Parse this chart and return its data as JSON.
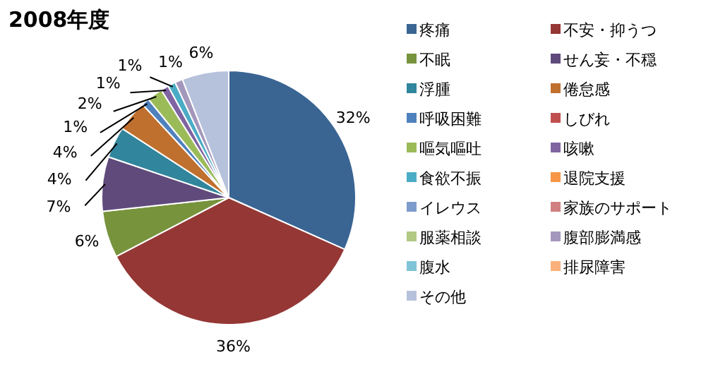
{
  "chart_data": {
    "type": "pie",
    "title": "2008年度",
    "categories": [
      "疼痛",
      "不安・抑うつ",
      "不眠",
      "せん妄・不穏",
      "浮腫",
      "倦怠感",
      "呼吸困難",
      "しびれ",
      "嘔気嘔吐",
      "咳嗽",
      "食欲不振",
      "退院支援",
      "イレウス",
      "家族のサポート",
      "服薬相談",
      "腹部膨満感",
      "腹水",
      "排尿障害",
      "その他"
    ],
    "values": [
      32,
      36,
      6,
      7,
      4,
      4,
      1,
      0,
      2,
      1,
      1,
      0,
      0,
      0,
      0,
      1,
      0,
      0,
      6
    ],
    "value_labels": [
      "32%",
      "36%",
      "6%",
      "7%",
      "4%",
      "4%",
      "1%",
      null,
      "2%",
      "1%",
      "1%",
      null,
      null,
      null,
      null,
      "1%",
      null,
      null,
      "6%"
    ],
    "colors": [
      "#3a6593",
      "#953735",
      "#77933c",
      "#604a7b",
      "#31859c",
      "#c0702e",
      "#4f81bd",
      "#c0504d",
      "#9bbb59",
      "#8064a2",
      "#4bacc6",
      "#f79646",
      "#7e9ccb",
      "#d08080",
      "#b1c983",
      "#a497bc",
      "#7fc4d6",
      "#fab07c",
      "#b6c2dc"
    ],
    "legend": "right"
  }
}
